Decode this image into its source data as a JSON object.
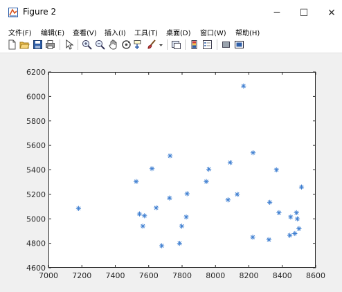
{
  "window": {
    "title": "Figure 2",
    "min": "─",
    "max": "☐",
    "close": "✕"
  },
  "menu": [
    {
      "label": "文件(F)"
    },
    {
      "label": "编辑(E)"
    },
    {
      "label": "查看(V)"
    },
    {
      "label": "插入(I)"
    },
    {
      "label": "工具(T)"
    },
    {
      "label": "桌面(D)"
    },
    {
      "label": "窗口(W)"
    },
    {
      "label": "帮助(H)"
    }
  ],
  "toolbar": [
    {
      "name": "new-figure-icon"
    },
    {
      "name": "open-file-icon"
    },
    {
      "name": "save-icon"
    },
    {
      "name": "print-icon"
    },
    {
      "name": "pointer-icon"
    },
    {
      "name": "zoom-in-icon"
    },
    {
      "name": "zoom-out-icon"
    },
    {
      "name": "pan-icon"
    },
    {
      "name": "rotate-3d-icon"
    },
    {
      "name": "data-cursor-icon"
    },
    {
      "name": "brush-icon"
    },
    {
      "name": "link-plot-icon"
    },
    {
      "name": "colorbar-icon"
    },
    {
      "name": "legend-icon"
    },
    {
      "name": "hide-plot-tools-icon"
    },
    {
      "name": "show-plot-tools-icon"
    }
  ],
  "colors": {
    "marker": "#3f7fd1",
    "axes": "#262626",
    "plot_bg": "#ffffff"
  },
  "chart_data": {
    "type": "scatter",
    "marker": "*",
    "xlim": [
      7000,
      8600
    ],
    "ylim": [
      4600,
      6200
    ],
    "xticks": [
      "7000",
      "7200",
      "7400",
      "7600",
      "7800",
      "8000",
      "8200",
      "8400",
      "8600"
    ],
    "yticks": [
      "4600",
      "4800",
      "5000",
      "5200",
      "5400",
      "5600",
      "5800",
      "6000",
      "6200"
    ],
    "x": [
      7180,
      7525,
      7545,
      7565,
      7575,
      7620,
      7645,
      7678,
      7725,
      7728,
      7785,
      7798,
      7825,
      7830,
      7945,
      7960,
      8075,
      8088,
      8130,
      8168,
      8223,
      8225,
      8320,
      8325,
      8365,
      8380,
      8445,
      8450,
      8475,
      8485,
      8490,
      8500,
      8515
    ],
    "y": [
      5085,
      5305,
      5040,
      4940,
      5025,
      5410,
      5090,
      4780,
      5170,
      5515,
      4800,
      4940,
      5015,
      5205,
      5305,
      5405,
      5155,
      5460,
      5200,
      6085,
      4850,
      5540,
      4830,
      5135,
      5400,
      5050,
      4865,
      5015,
      4880,
      5050,
      5000,
      4920,
      5260
    ]
  }
}
